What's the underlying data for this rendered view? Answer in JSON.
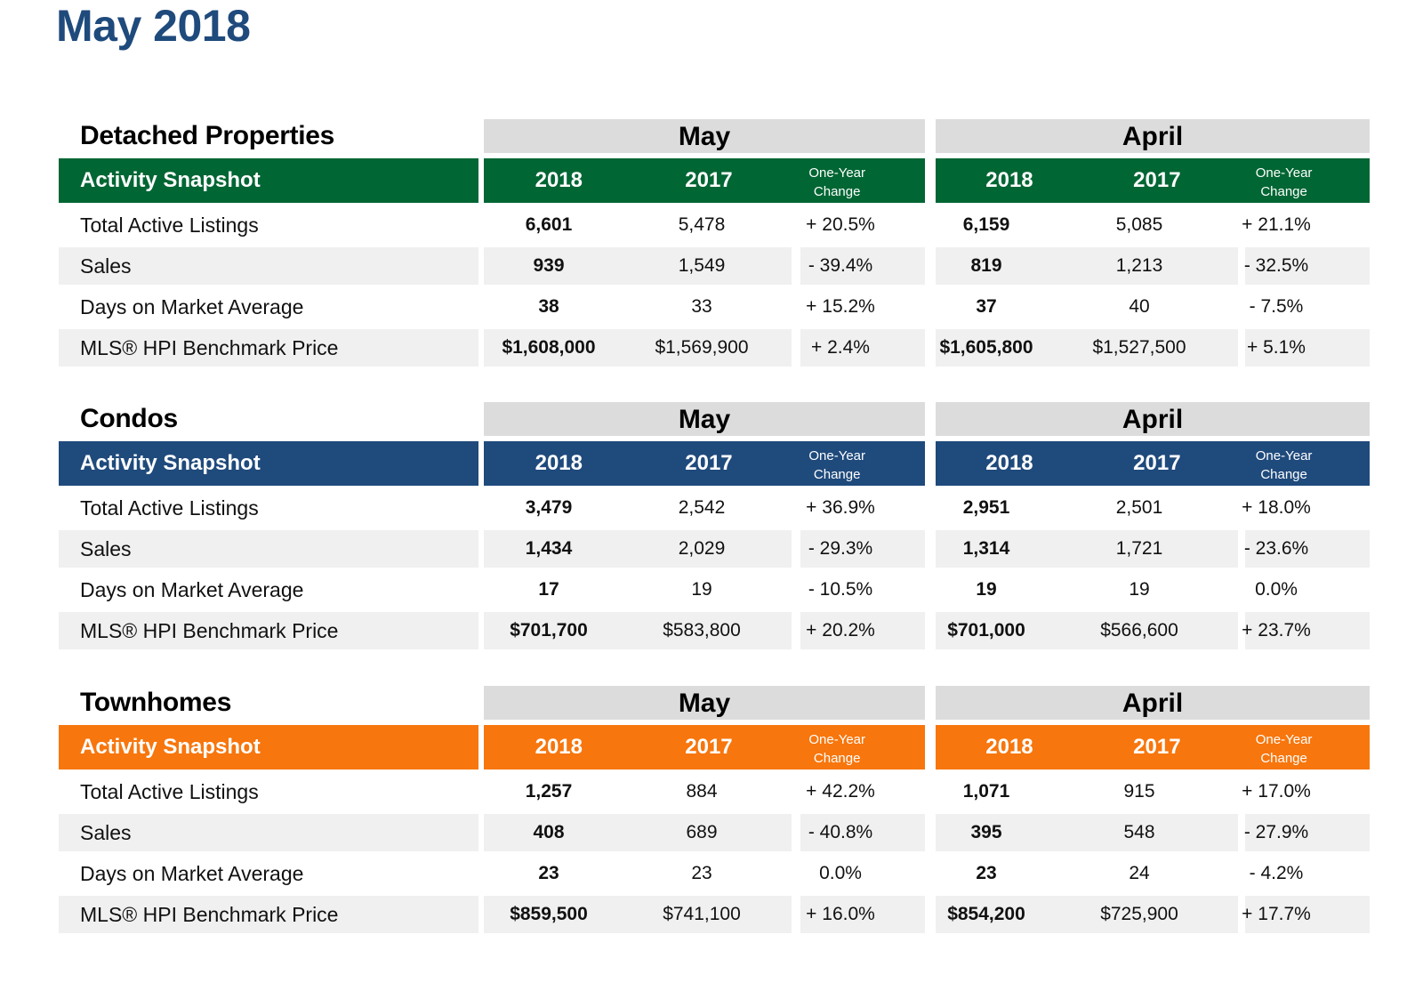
{
  "page_title": "May 2018",
  "column_labels": {
    "year_current": "2018",
    "year_prior": "2017",
    "change": "One-Year Change"
  },
  "band_label": "Activity Snapshot",
  "sections": [
    {
      "title": "Detached Properties",
      "color": "#006633",
      "months": [
        "May",
        "April"
      ],
      "rows": [
        {
          "label": "Total Active Listings",
          "may": [
            "6,601",
            "5,478",
            "+ 20.5%"
          ],
          "april": [
            "6,159",
            "5,085",
            "+ 21.1%"
          ]
        },
        {
          "label": "Sales",
          "may": [
            "939",
            "1,549",
            "- 39.4%"
          ],
          "april": [
            "819",
            "1,213",
            "- 32.5%"
          ]
        },
        {
          "label": "Days on Market Average",
          "may": [
            "38",
            "33",
            "+ 15.2%"
          ],
          "april": [
            "37",
            "40",
            "- 7.5%"
          ]
        },
        {
          "label": "MLS® HPI Benchmark Price",
          "may": [
            "$1,608,000",
            "$1,569,900",
            "+ 2.4%"
          ],
          "april": [
            "$1,605,800",
            "$1,527,500",
            "+ 5.1%"
          ]
        }
      ]
    },
    {
      "title": "Condos",
      "color": "#1f4a7c",
      "months": [
        "May",
        "April"
      ],
      "rows": [
        {
          "label": "Total Active Listings",
          "may": [
            "3,479",
            "2,542",
            "+ 36.9%"
          ],
          "april": [
            "2,951",
            "2,501",
            "+ 18.0%"
          ]
        },
        {
          "label": "Sales",
          "may": [
            "1,434",
            "2,029",
            "- 29.3%"
          ],
          "april": [
            "1,314",
            "1,721",
            "- 23.6%"
          ]
        },
        {
          "label": "Days on Market Average",
          "may": [
            "17",
            "19",
            "- 10.5%"
          ],
          "april": [
            "19",
            "19",
            "0.0%"
          ]
        },
        {
          "label": "MLS® HPI Benchmark Price",
          "may": [
            "$701,700",
            "$583,800",
            "+ 20.2%"
          ],
          "april": [
            "$701,000",
            "$566,600",
            "+ 23.7%"
          ]
        }
      ]
    },
    {
      "title": "Townhomes",
      "color": "#f7760d",
      "months": [
        "May",
        "April"
      ],
      "rows": [
        {
          "label": "Total Active Listings",
          "may": [
            "1,257",
            "884",
            "+ 42.2%"
          ],
          "april": [
            "1,071",
            "915",
            "+ 17.0%"
          ]
        },
        {
          "label": "Sales",
          "may": [
            "408",
            "689",
            "- 40.8%"
          ],
          "april": [
            "395",
            "548",
            "- 27.9%"
          ]
        },
        {
          "label": "Days on Market Average",
          "may": [
            "23",
            "23",
            "0.0%"
          ],
          "april": [
            "23",
            "24",
            "- 4.2%"
          ]
        },
        {
          "label": "MLS® HPI Benchmark Price",
          "may": [
            "$859,500",
            "$741,100",
            "+ 16.0%"
          ],
          "april": [
            "$854,200",
            "$725,900",
            "+ 17.7%"
          ]
        }
      ]
    }
  ]
}
